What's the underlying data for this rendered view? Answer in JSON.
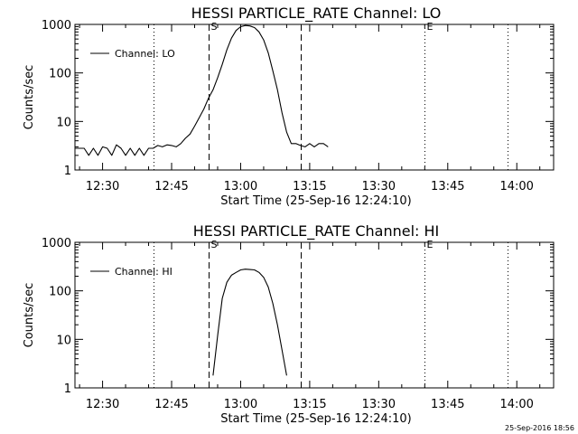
{
  "chart_data": [
    {
      "type": "line",
      "title": "HESSI PARTICLE_RATE Channel: LO",
      "xlabel": "Start Time (25-Sep-16 12:24:10)",
      "ylabel": "Counts/sec",
      "y_scale": "log",
      "ylim": [
        1,
        1000
      ],
      "xlim": [
        "12:24",
        "14:08"
      ],
      "x_ticks": [
        "12:30",
        "12:45",
        "13:00",
        "13:15",
        "13:30",
        "13:45",
        "14:00"
      ],
      "y_ticks": [
        "1",
        "10",
        "100",
        "1000"
      ],
      "legend": {
        "placement": "top-left",
        "entries": [
          "Channel: LO"
        ]
      },
      "grid": false,
      "vlines": [
        {
          "time": "12:41",
          "style": "dotted"
        },
        {
          "time": "12:53",
          "style": "dashed",
          "label": "S"
        },
        {
          "time": "13:13",
          "style": "dashed"
        },
        {
          "time": "13:40",
          "style": "dotted",
          "label": "E"
        },
        {
          "time": "13:58",
          "style": "dotted"
        }
      ],
      "series": [
        {
          "name": "Channel: LO",
          "x": [
            "12:24",
            "12:26",
            "12:27",
            "12:28",
            "12:29",
            "12:30",
            "12:31",
            "12:32",
            "12:33",
            "12:34",
            "12:35",
            "12:36",
            "12:37",
            "12:38",
            "12:39",
            "12:40",
            "12:41",
            "12:42",
            "12:43",
            "12:44",
            "12:45",
            "12:46",
            "12:47",
            "12:48",
            "12:49",
            "12:50",
            "12:51",
            "12:52",
            "12:53",
            "12:54",
            "12:55",
            "12:56",
            "12:57",
            "12:58",
            "12:59",
            "13:00",
            "13:01",
            "13:02",
            "13:03",
            "13:04",
            "13:05",
            "13:06",
            "13:07",
            "13:08",
            "13:09",
            "13:10",
            "13:11",
            "13:12",
            "13:13",
            "13:14",
            "13:15",
            "13:16",
            "13:17",
            "13:18",
            "13:19"
          ],
          "y": [
            2.8,
            2.8,
            2,
            2.8,
            2,
            3,
            2.8,
            2,
            3.3,
            2.8,
            2,
            2.8,
            2,
            2.8,
            2,
            2.8,
            2.8,
            3.2,
            3,
            3.3,
            3.2,
            3,
            3.5,
            4.5,
            5.5,
            8,
            12,
            18,
            30,
            45,
            80,
            150,
            300,
            520,
            750,
            900,
            950,
            930,
            860,
            700,
            480,
            260,
            110,
            45,
            15,
            6,
            3.5,
            3.5,
            3.2,
            3,
            3.5,
            3,
            3.5,
            3.5,
            3
          ],
          "style": "solid"
        }
      ]
    },
    {
      "type": "line",
      "title": "HESSI PARTICLE_RATE Channel: HI",
      "xlabel": "Start Time (25-Sep-16 12:24:10)",
      "ylabel": "Counts/sec",
      "y_scale": "log",
      "ylim": [
        1,
        1000
      ],
      "xlim": [
        "12:24",
        "14:08"
      ],
      "x_ticks": [
        "12:30",
        "12:45",
        "13:00",
        "13:15",
        "13:30",
        "13:45",
        "14:00"
      ],
      "y_ticks": [
        "1",
        "10",
        "100",
        "1000"
      ],
      "legend": {
        "placement": "top-left",
        "entries": [
          "Channel: HI"
        ]
      },
      "grid": false,
      "vlines": [
        {
          "time": "12:41",
          "style": "dotted"
        },
        {
          "time": "12:53",
          "style": "dashed",
          "label": "S"
        },
        {
          "time": "13:13",
          "style": "dashed"
        },
        {
          "time": "13:40",
          "style": "dotted",
          "label": "E"
        },
        {
          "time": "13:58",
          "style": "dotted"
        }
      ],
      "series": [
        {
          "name": "Channel: HI",
          "x": [
            "12:54",
            "12:55",
            "12:56",
            "12:57",
            "12:58",
            "12:59",
            "13:00",
            "13:01",
            "13:02",
            "13:03",
            "13:04",
            "13:05",
            "13:06",
            "13:07",
            "13:08",
            "13:09",
            "13:10"
          ],
          "y": [
            1.8,
            12,
            70,
            150,
            210,
            240,
            270,
            280,
            275,
            270,
            240,
            190,
            120,
            55,
            20,
            6,
            1.8
          ],
          "style": "solid"
        }
      ]
    }
  ],
  "timestamp": "25-Sep-2016 18:56"
}
